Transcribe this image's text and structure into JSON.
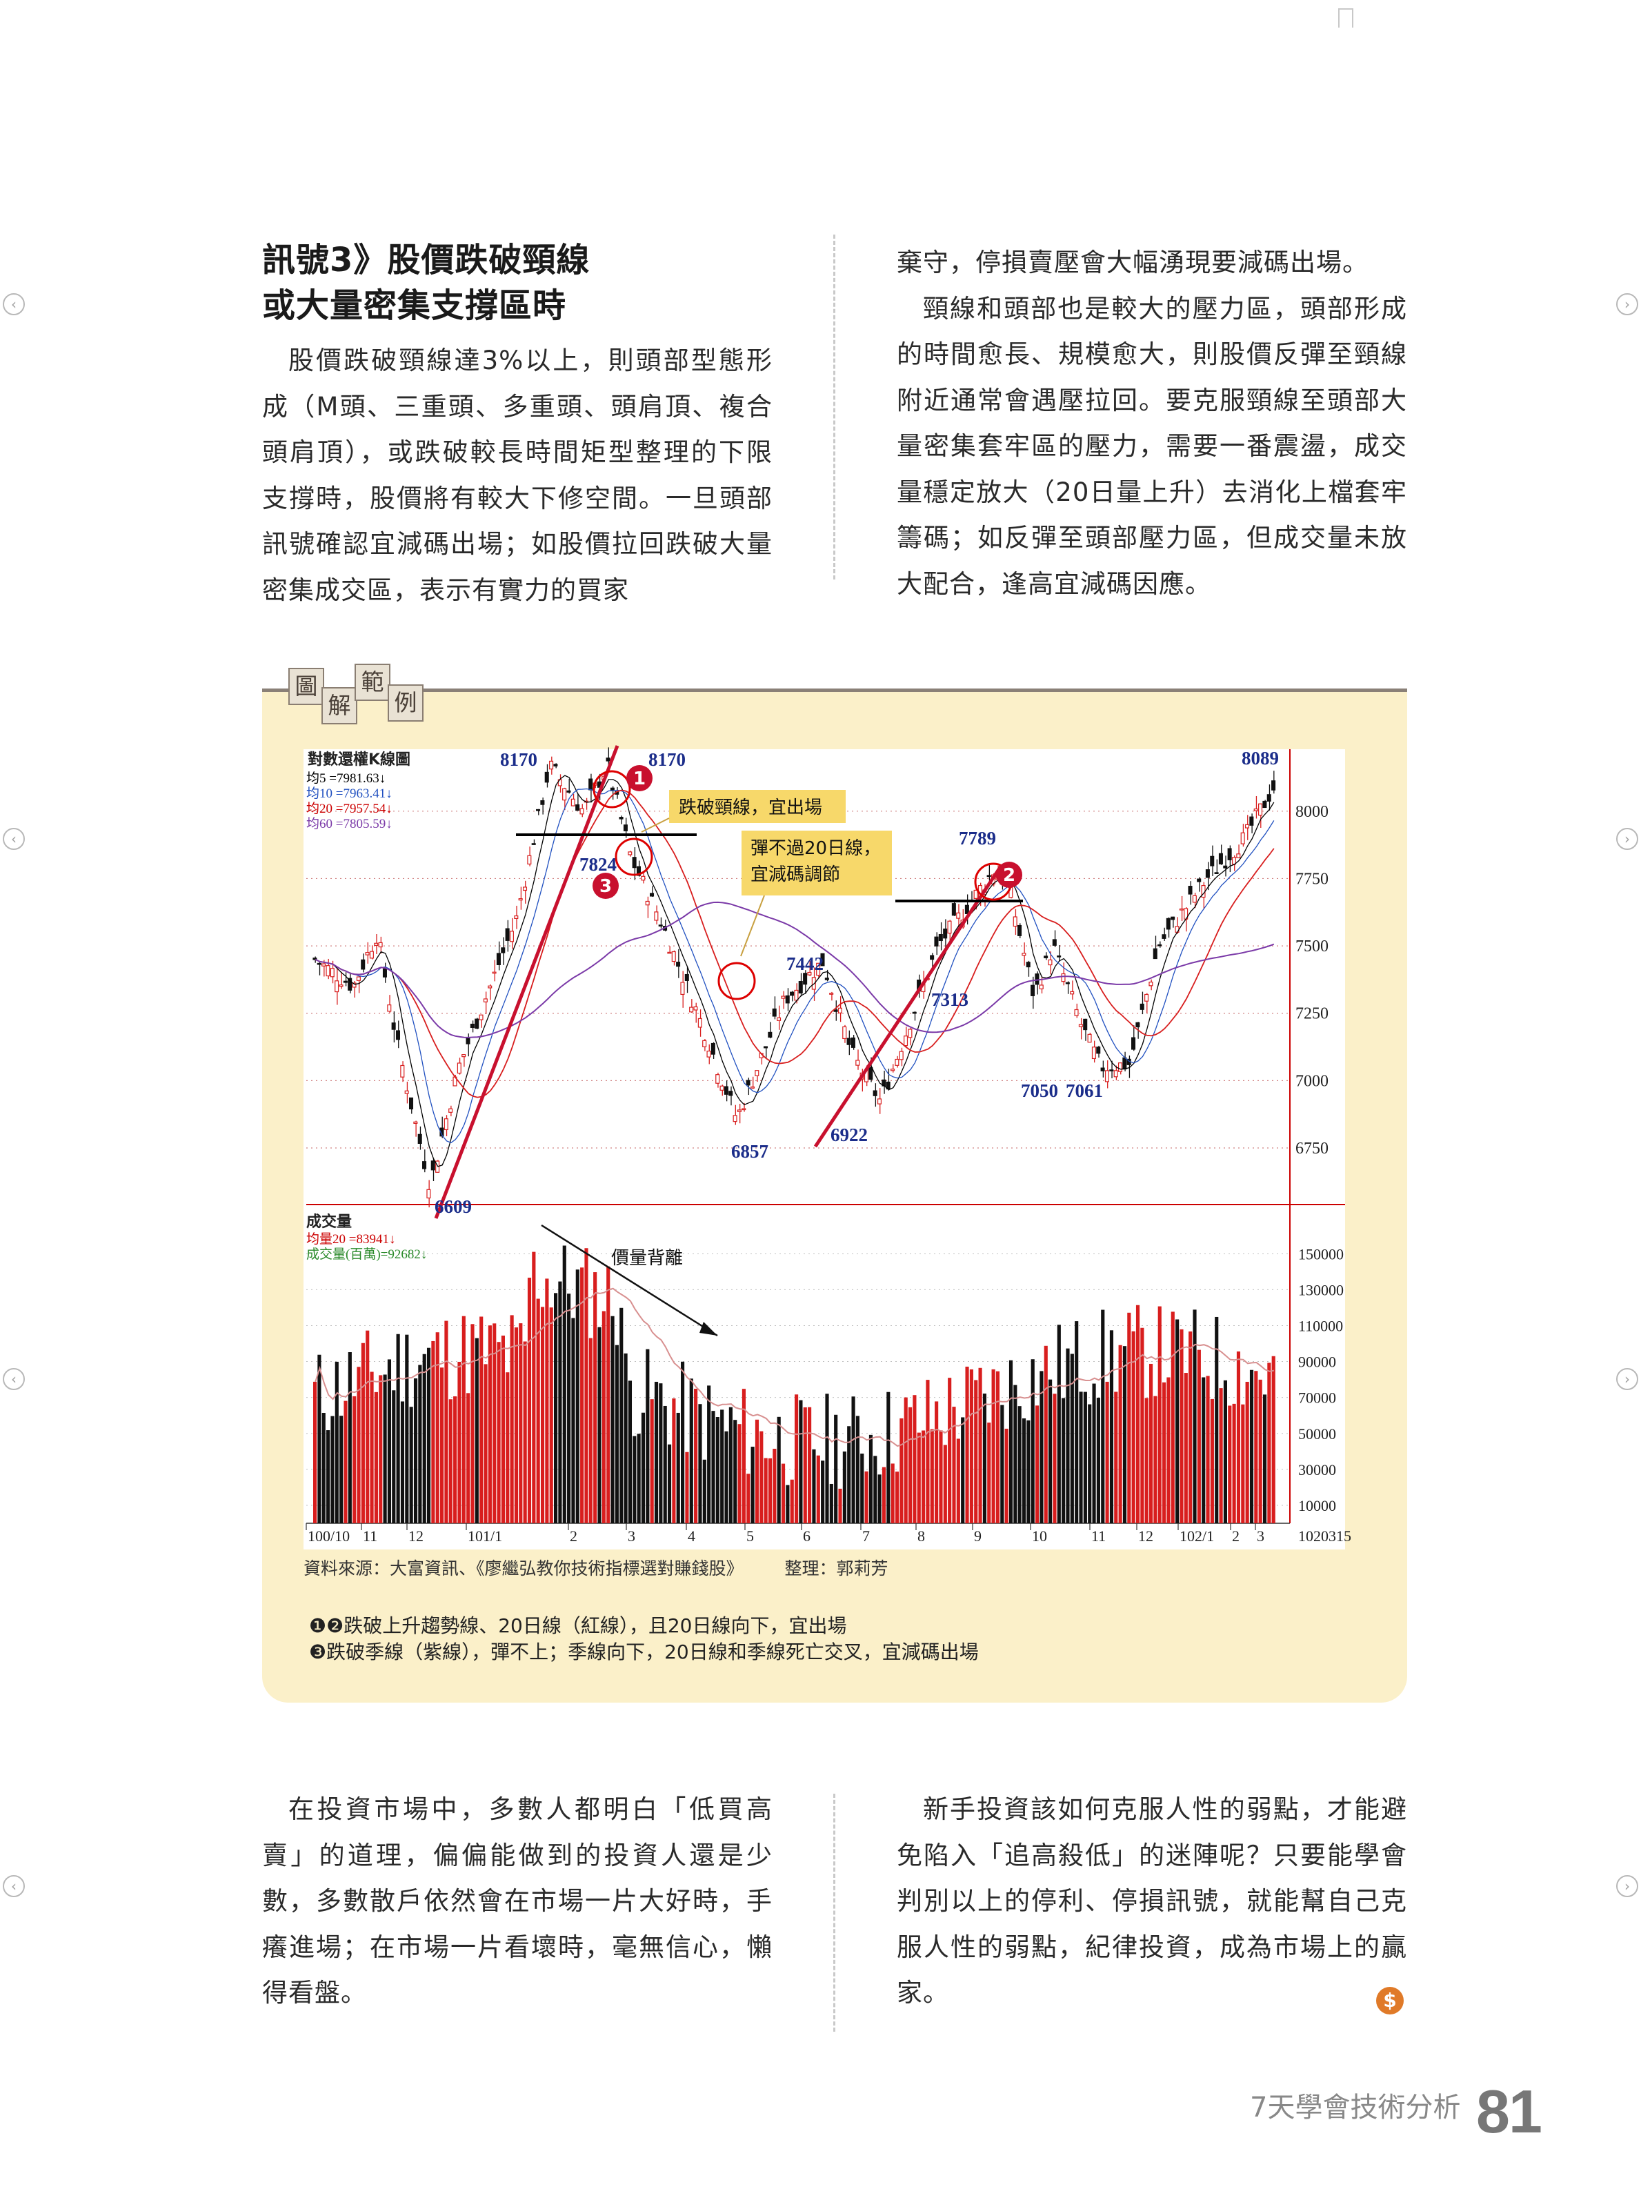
{
  "article": {
    "heading_line1": "訊號3》股價跌破頸線",
    "heading_line2": "或大量密集支撐區時",
    "left_para": "股價跌破頸線達3%以上，則頭部型態形成（M頭、三重頭、多重頭、頭肩頂、複合頭肩頂），或跌破較長時間矩型整理的下限支撐時，股價將有較大下修空間。一旦頭部訊號確認宜減碼出場；如股價拉回跌破大量密集成交區，表示有實力的買家",
    "right_para1": "棄守，停損賣壓會大幅湧現要減碼出場。",
    "right_para2": "頸線和頭部也是較大的壓力區，頭部形成的時間愈長、規模愈大，則股價反彈至頸線附近通常會遇壓拉回。要克服頸線至頭部大量密集套牢區的壓力，需要一番震盪，成交量穩定放大（20日量上升）去消化上檔套牢籌碼；如反彈至頭部壓力區，但成交量未放大配合，逢高宜減碼因應。",
    "bottom_left_para": "在投資市場中，多數人都明白「低買高賣」的道理，偏偏能做到的投資人還是少數，多數散戶依然會在市場一片大好時，手癢進場；在市場一片看壞時，毫無信心，懶得看盤。",
    "bottom_right_para": "新手投資該如何克服人性的弱點，才能避免陷入「追高殺低」的迷陣呢？只要能學會判別以上的停利、停損訊號，就能幫自己克服人性的弱點，紀律投資，成為市場上的贏家。"
  },
  "figure": {
    "tag_chars": [
      "圖",
      "解",
      "範",
      "例"
    ],
    "source": "資料來源：大富資訊、《廖繼弘教你技術指標選對賺錢股》",
    "editor": "整理：郭莉芳",
    "note1": "❶❷跌破上升趨勢線、20日線（紅線），且20日線向下，宜出場",
    "note2": "❸跌破季線（紫線），彈不上；季線向下，20日線和季線死亡交叉，宜減碼出場"
  },
  "chart_data": {
    "type": "candlestick",
    "title": "對數還權K線圖",
    "ma_legend": [
      "均5 =7981.63↓",
      "均10 =7963.41↓",
      "均20 =7957.54↓",
      "均60 =7805.59↓"
    ],
    "y_ticks": [
      8000,
      7750,
      7500,
      7250,
      7000,
      6750
    ],
    "key_points": [
      {
        "label": "6609",
        "value": 6609
      },
      {
        "label": "8170",
        "value": 8170
      },
      {
        "label": "8170",
        "value": 8170
      },
      {
        "label": "7824",
        "value": 7824
      },
      {
        "label": "6857",
        "value": 6857
      },
      {
        "label": "7442",
        "value": 7442
      },
      {
        "label": "6922",
        "value": 6922
      },
      {
        "label": "7789",
        "value": 7789
      },
      {
        "label": "7313",
        "value": 7313
      },
      {
        "label": "7050",
        "value": 7050
      },
      {
        "label": "7061",
        "value": 7061
      },
      {
        "label": "8089",
        "value": 8089
      }
    ],
    "callouts": [
      "跌破頸線，宜出場",
      "彈不過20日線，\n宜減碼調節"
    ],
    "markers": [
      "1",
      "2",
      "3"
    ],
    "volume": {
      "title": "成交量",
      "legend": [
        "均量20 =83941↓",
        "成交量(百萬)=92682↓"
      ],
      "annotation": "價量背離",
      "y_ticks": [
        150000,
        130000,
        110000,
        90000,
        70000,
        50000,
        30000,
        10000
      ]
    },
    "x_ticks": [
      "100/10",
      "11",
      "12",
      "101/1",
      "2",
      "3",
      "4",
      "5",
      "6",
      "7",
      "8",
      "9",
      "10",
      "11",
      "12",
      "102/1",
      "2",
      "3"
    ],
    "x_end_label": "1020315",
    "colors": {
      "up": "#d81e1e",
      "down": "#111111",
      "ma20": "#d81e1e",
      "ma60": "#7b3aa8",
      "trend": "#c8102e"
    }
  },
  "footer": {
    "book_title": "7天學會技術分析",
    "page_number": "81"
  },
  "nav": {
    "prev_icon": "‹",
    "next_icon": "›"
  }
}
